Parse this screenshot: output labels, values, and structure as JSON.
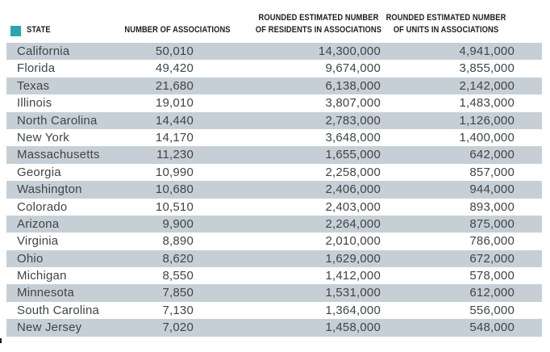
{
  "accent_color": "#2AA7AE",
  "stripe_color": "#C7CFD6",
  "headers": {
    "state": "STATE",
    "associations": "NUMBER OF ASSOCIATIONS",
    "residents_line1": "ROUNDED ESTIMATED NUMBER",
    "residents_line2": "OF RESIDENTS IN ASSOCIATIONS",
    "units_line1": "ROUNDED ESTIMATED NUMBER",
    "units_line2": "OF UNITS IN ASSOCIATIONS"
  },
  "table": {
    "rows": [
      {
        "state": "California",
        "associations": "50,010",
        "residents": "14,300,000",
        "units": "4,941,000"
      },
      {
        "state": "Florida",
        "associations": "49,420",
        "residents": "9,674,000",
        "units": "3,855,000"
      },
      {
        "state": "Texas",
        "associations": "21,680",
        "residents": "6,138,000",
        "units": "2,142,000"
      },
      {
        "state": "Illinois",
        "associations": "19,010",
        "residents": "3,807,000",
        "units": "1,483,000"
      },
      {
        "state": "North Carolina",
        "associations": "14,440",
        "residents": "2,783,000",
        "units": "1,126,000"
      },
      {
        "state": "New York",
        "associations": "14,170",
        "residents": "3,648,000",
        "units": "1,400,000"
      },
      {
        "state": "Massachusetts",
        "associations": "11,230",
        "residents": "1,655,000",
        "units": "642,000"
      },
      {
        "state": "Georgia",
        "associations": "10,990",
        "residents": "2,258,000",
        "units": "857,000"
      },
      {
        "state": "Washington",
        "associations": "10,680",
        "residents": "2,406,000",
        "units": "944,000"
      },
      {
        "state": "Colorado",
        "associations": "10,510",
        "residents": "2,403,000",
        "units": "893,000"
      },
      {
        "state": "Arizona",
        "associations": "9,900",
        "residents": "2,264,000",
        "units": "875,000"
      },
      {
        "state": "Virginia",
        "associations": "8,890",
        "residents": "2,010,000",
        "units": "786,000"
      },
      {
        "state": "Ohio",
        "associations": "8,620",
        "residents": "1,629,000",
        "units": "672,000"
      },
      {
        "state": "Michigan",
        "associations": "8,550",
        "residents": "1,412,000",
        "units": "578,000"
      },
      {
        "state": "Minnesota",
        "associations": "7,850",
        "residents": "1,531,000",
        "units": "612,000"
      },
      {
        "state": "South Carolina",
        "associations": "7,130",
        "residents": "1,364,000",
        "units": "556,000"
      },
      {
        "state": "New Jersey",
        "associations": "7,020",
        "residents": "1,458,000",
        "units": "548,000"
      }
    ]
  },
  "chart_data": {
    "type": "table",
    "columns": [
      "STATE",
      "NUMBER OF ASSOCIATIONS",
      "ROUNDED ESTIMATED NUMBER OF RESIDENTS IN ASSOCIATIONS",
      "ROUNDED ESTIMATED NUMBER OF UNITS IN ASSOCIATIONS"
    ],
    "rows": [
      [
        "California",
        50010,
        14300000,
        4941000
      ],
      [
        "Florida",
        49420,
        9674000,
        3855000
      ],
      [
        "Texas",
        21680,
        6138000,
        2142000
      ],
      [
        "Illinois",
        19010,
        3807000,
        1483000
      ],
      [
        "North Carolina",
        14440,
        2783000,
        1126000
      ],
      [
        "New York",
        14170,
        3648000,
        1400000
      ],
      [
        "Massachusetts",
        11230,
        1655000,
        642000
      ],
      [
        "Georgia",
        10990,
        2258000,
        857000
      ],
      [
        "Washington",
        10680,
        2406000,
        944000
      ],
      [
        "Colorado",
        10510,
        2403000,
        893000
      ],
      [
        "Arizona",
        9900,
        2264000,
        875000
      ],
      [
        "Virginia",
        8890,
        2010000,
        786000
      ],
      [
        "Ohio",
        8620,
        1629000,
        672000
      ],
      [
        "Michigan",
        8550,
        1412000,
        578000
      ],
      [
        "Minnesota",
        7850,
        1531000,
        612000
      ],
      [
        "South Carolina",
        7130,
        1364000,
        556000
      ],
      [
        "New Jersey",
        7020,
        1458000,
        548000
      ]
    ],
    "layout": {
      "striped_rows": "odd",
      "numeric_alignment": "right"
    }
  }
}
